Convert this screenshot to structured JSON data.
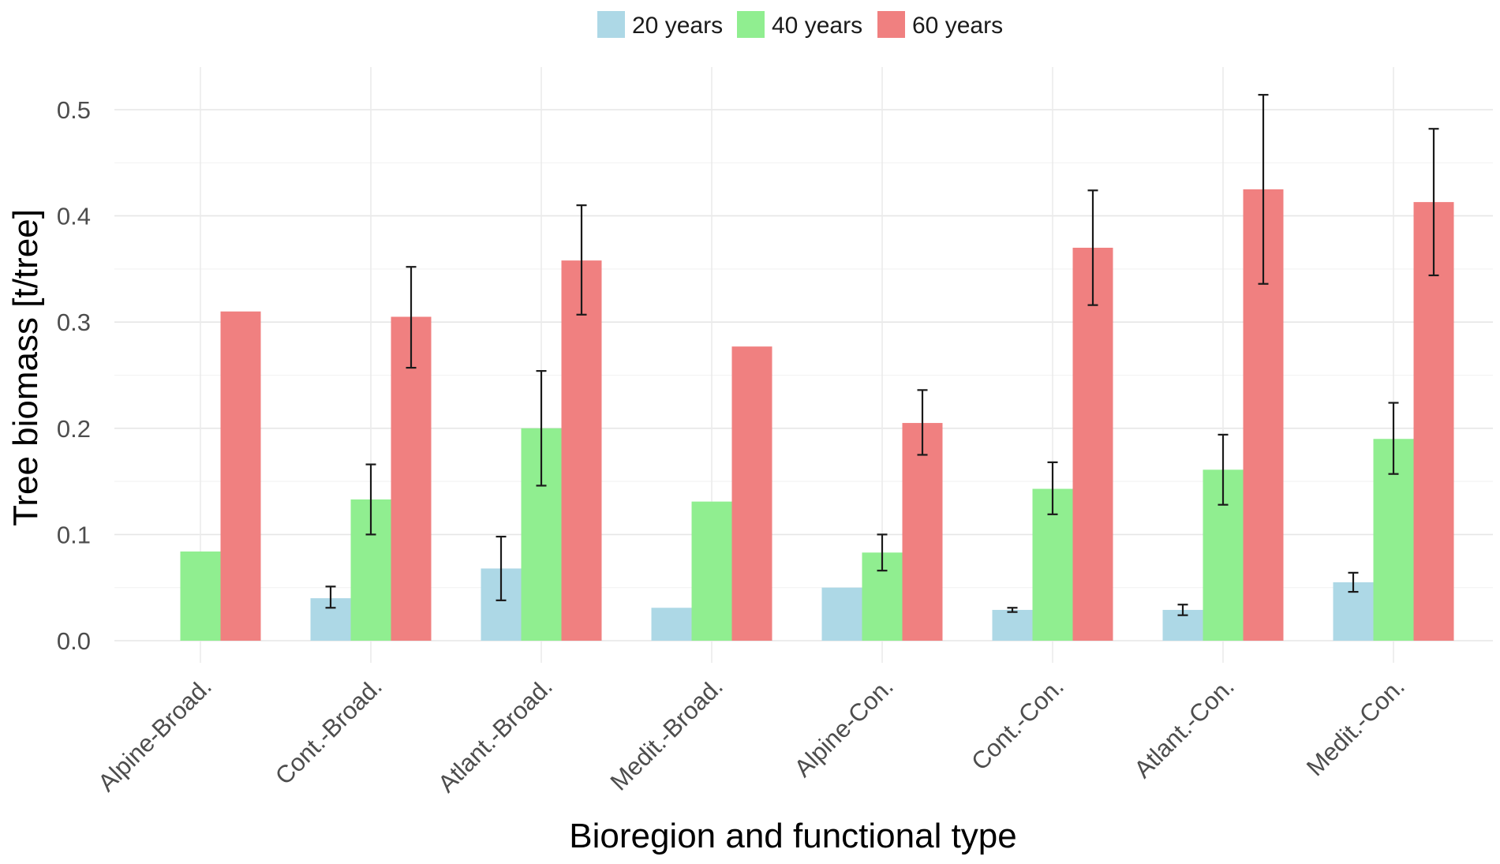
{
  "chart_data": {
    "type": "bar",
    "title": "",
    "xlabel": "Bioregion and functional type",
    "ylabel": "Tree biomass [t/tree]",
    "ylim": [
      0,
      0.54
    ],
    "yticks": [
      "0.0",
      "0.1",
      "0.2",
      "0.3",
      "0.4",
      "0.5"
    ],
    "categories": [
      "Alpine-Broad.",
      "Cont.-Broad.",
      "Atlant.-Broad.",
      "Medit.-Broad.",
      "Alpine-Con.",
      "Cont.-Con.",
      "Atlant.-Con.",
      "Medit.-Con."
    ],
    "legend_position": "top",
    "series": [
      {
        "name": "20 years",
        "color": "#ADD8E6",
        "values": [
          null,
          0.04,
          0.068,
          0.031,
          0.05,
          0.029,
          0.029,
          0.055
        ],
        "error_low": [
          null,
          0.031,
          0.038,
          null,
          null,
          0.027,
          0.024,
          0.046
        ],
        "error_high": [
          null,
          0.051,
          0.098,
          null,
          null,
          0.031,
          0.034,
          0.064
        ]
      },
      {
        "name": "40 years",
        "color": "#90EE90",
        "values": [
          0.084,
          0.133,
          0.2,
          0.131,
          0.083,
          0.143,
          0.161,
          0.19
        ],
        "error_low": [
          null,
          0.1,
          0.146,
          null,
          0.066,
          0.119,
          0.128,
          0.157
        ],
        "error_high": [
          null,
          0.166,
          0.254,
          null,
          0.1,
          0.168,
          0.194,
          0.224
        ]
      },
      {
        "name": "60 years",
        "color": "#F08080",
        "values": [
          0.31,
          0.305,
          0.358,
          0.277,
          0.205,
          0.37,
          0.425,
          0.413
        ],
        "error_low": [
          null,
          0.257,
          0.307,
          null,
          0.175,
          0.316,
          0.336,
          0.344
        ],
        "error_high": [
          null,
          0.352,
          0.41,
          null,
          0.236,
          0.424,
          0.514,
          0.482
        ]
      }
    ]
  }
}
